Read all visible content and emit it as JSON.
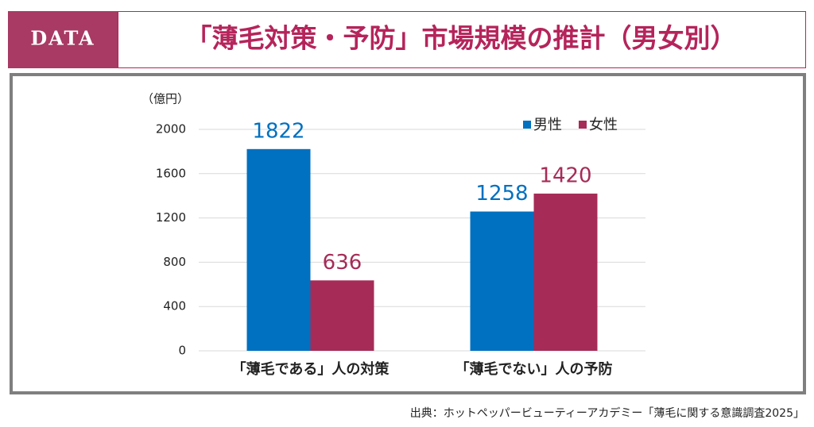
{
  "header": {
    "badge": "DATA"
  },
  "chart_data": {
    "type": "bar",
    "title": "「薄毛対策・予防」市場規模の推計（男女別）",
    "y_label": "（億円）",
    "categories": [
      "「薄毛である」人の対策",
      "「薄毛でない」人の予防"
    ],
    "series": [
      {
        "name": "男性",
        "color": "#0070c0",
        "values": [
          1822,
          1258
        ]
      },
      {
        "name": "女性",
        "color": "#a62b57",
        "values": [
          636,
          1420
        ]
      }
    ],
    "ylim": [
      0,
      2000
    ],
    "yticks": [
      0,
      400,
      800,
      1200,
      1600,
      2000
    ],
    "grid": true,
    "legend": "top-right"
  },
  "source": "出典：ホットペッパービューティーアカデミー「薄毛に関する意識調査2025」"
}
